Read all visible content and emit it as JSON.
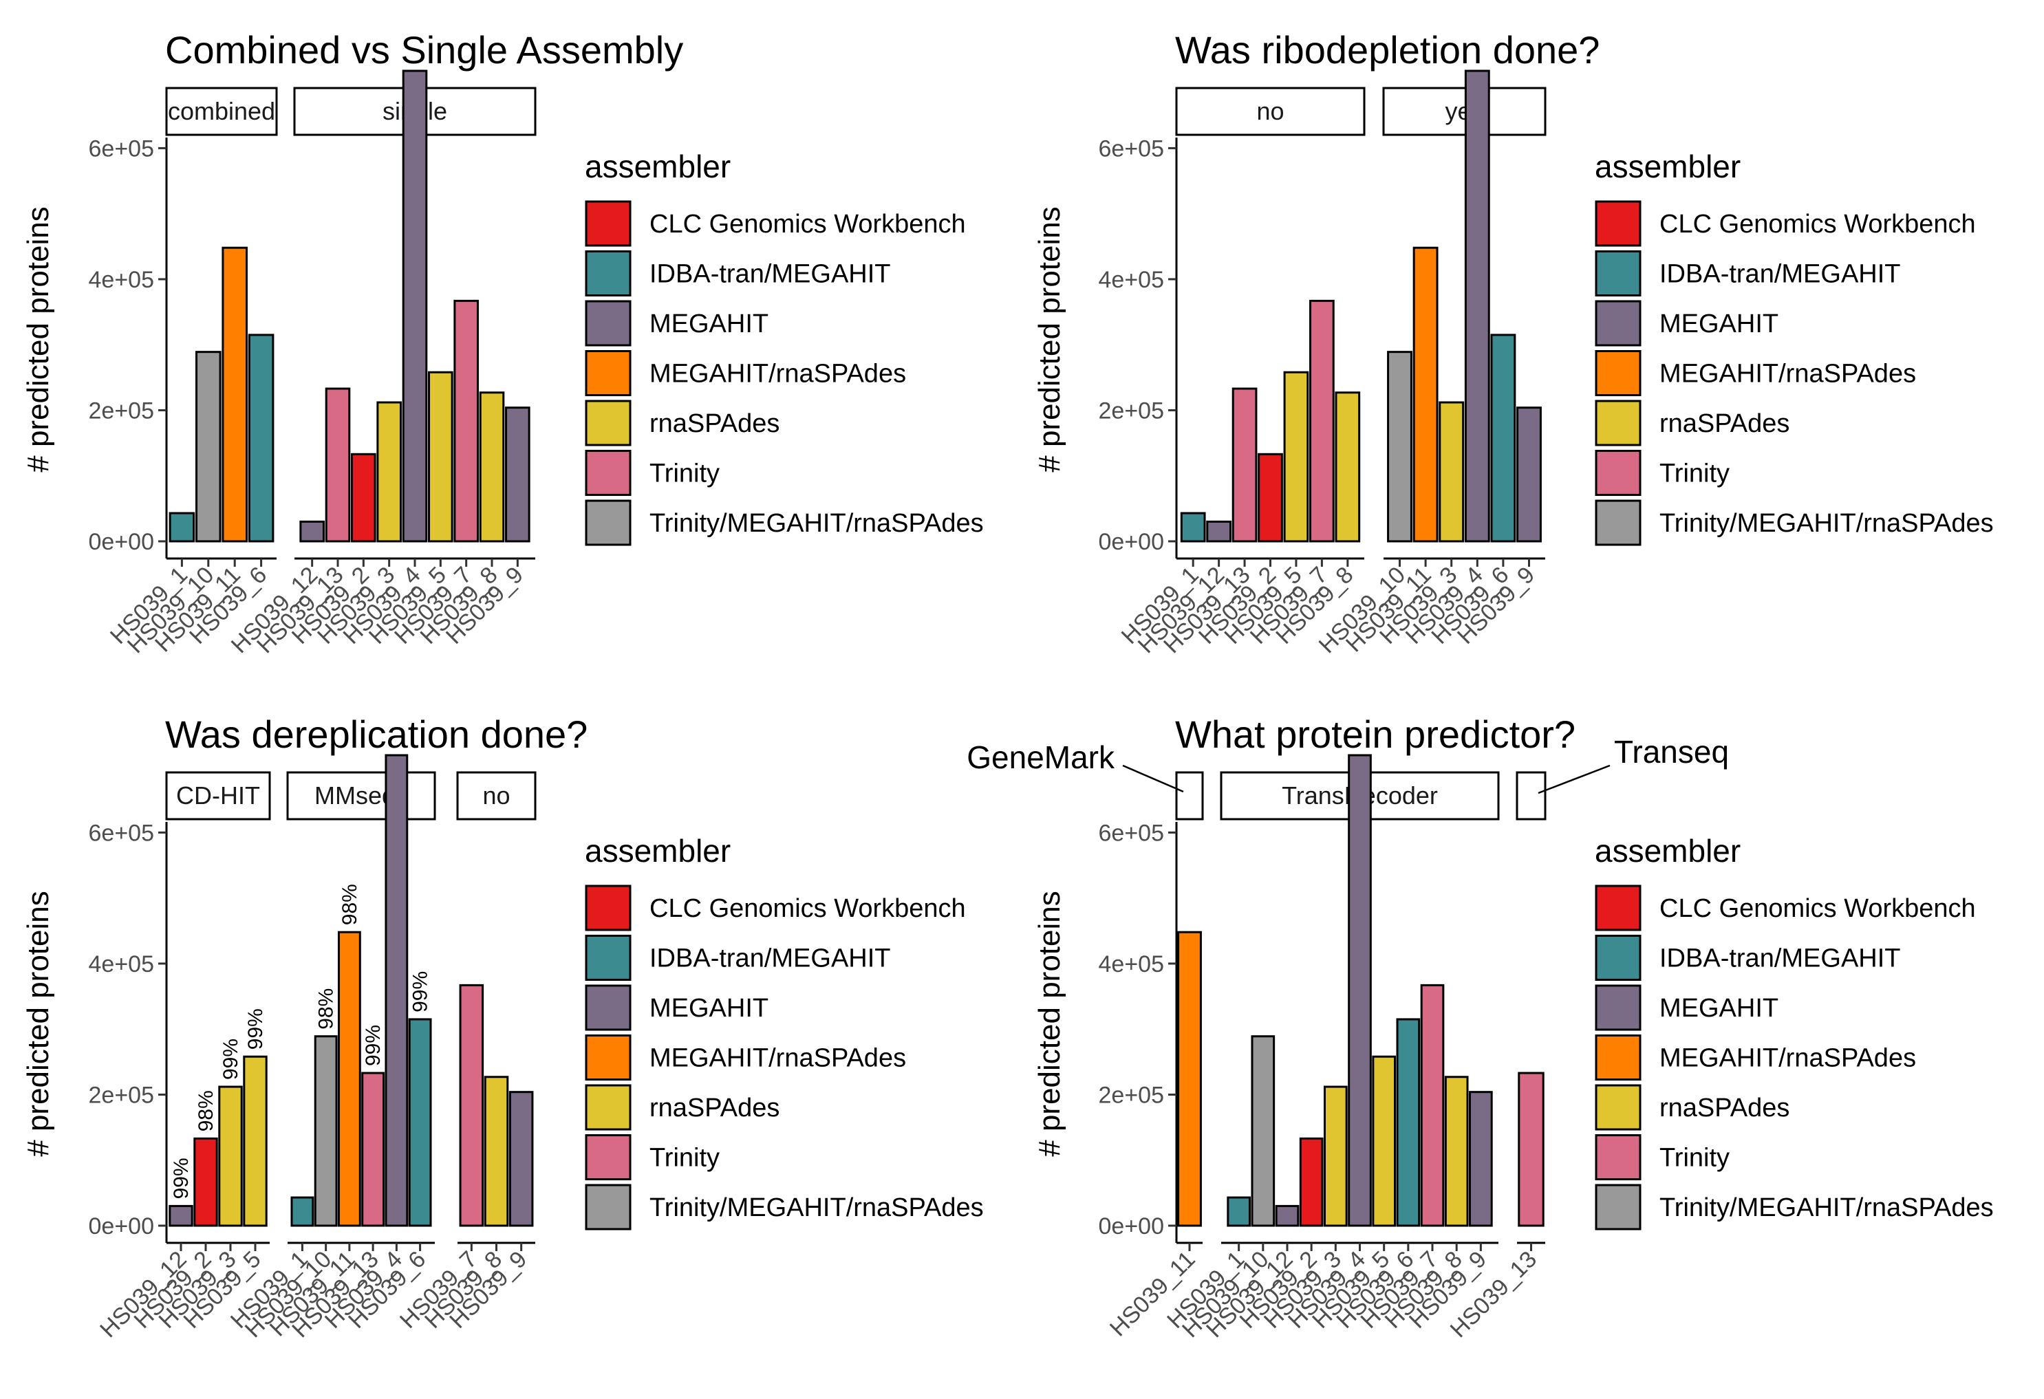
{
  "colors": {
    "CLC Genomics Workbench": "#E41A1C",
    "IDBA-tran/MEGAHIT": "#3B8B90",
    "MEGAHIT": "#7A6C87",
    "MEGAHIT/rnaSPAdes": "#FF7F00",
    "rnaSPAdes": "#E0C531",
    "Trinity": "#D86A85",
    "Trinity/MEGAHIT/rnaSPAdes": "#999999"
  },
  "legend": {
    "title": "assembler",
    "items": [
      "CLC Genomics Workbench",
      "IDBA-tran/MEGAHIT",
      "MEGAHIT",
      "MEGAHIT/rnaSPAdes",
      "rnaSPAdes",
      "Trinity",
      "Trinity/MEGAHIT/rnaSPAdes"
    ]
  },
  "ylabel": "# predicted proteins",
  "yticks": [
    0,
    200000,
    400000,
    600000
  ],
  "ytick_labels": [
    "0e+00",
    "2e+05",
    "4e+05",
    "6e+05"
  ],
  "ylim": [
    0,
    750000
  ],
  "chart_data": [
    {
      "type": "bar",
      "title": "Combined vs Single Assembly",
      "ylabel": "# predicted proteins",
      "facets": [
        {
          "label": "combined",
          "bars": [
            {
              "x": "HS039_1",
              "value": 43000,
              "assembler": "IDBA-tran/MEGAHIT"
            },
            {
              "x": "HS039_10",
              "value": 289000,
              "assembler": "Trinity/MEGAHIT/rnaSPAdes"
            },
            {
              "x": "HS039_11",
              "value": 448000,
              "assembler": "MEGAHIT/rnaSPAdes"
            },
            {
              "x": "HS039_6",
              "value": 315000,
              "assembler": "IDBA-tran/MEGAHIT"
            }
          ]
        },
        {
          "label": "single",
          "bars": [
            {
              "x": "HS039_12",
              "value": 30000,
              "assembler": "MEGAHIT"
            },
            {
              "x": "HS039_13",
              "value": 233000,
              "assembler": "Trinity"
            },
            {
              "x": "HS039_2",
              "value": 133000,
              "assembler": "CLC Genomics Workbench"
            },
            {
              "x": "HS039_3",
              "value": 212000,
              "assembler": "rnaSPAdes"
            },
            {
              "x": "HS039_4",
              "value": 718000,
              "assembler": "MEGAHIT"
            },
            {
              "x": "HS039_5",
              "value": 258000,
              "assembler": "rnaSPAdes"
            },
            {
              "x": "HS039_7",
              "value": 367000,
              "assembler": "Trinity"
            },
            {
              "x": "HS039_8",
              "value": 227000,
              "assembler": "rnaSPAdes"
            },
            {
              "x": "HS039_9",
              "value": 204000,
              "assembler": "MEGAHIT"
            }
          ]
        }
      ]
    },
    {
      "type": "bar",
      "title": "Was ribodepletion done?",
      "ylabel": "# predicted proteins",
      "facets": [
        {
          "label": "no",
          "bars": [
            {
              "x": "HS039_1",
              "value": 43000,
              "assembler": "IDBA-tran/MEGAHIT"
            },
            {
              "x": "HS039_12",
              "value": 30000,
              "assembler": "MEGAHIT"
            },
            {
              "x": "HS039_13",
              "value": 233000,
              "assembler": "Trinity"
            },
            {
              "x": "HS039_2",
              "value": 133000,
              "assembler": "CLC Genomics Workbench"
            },
            {
              "x": "HS039_5",
              "value": 258000,
              "assembler": "rnaSPAdes"
            },
            {
              "x": "HS039_7",
              "value": 367000,
              "assembler": "Trinity"
            },
            {
              "x": "HS039_8",
              "value": 227000,
              "assembler": "rnaSPAdes"
            }
          ]
        },
        {
          "label": "yes",
          "bars": [
            {
              "x": "HS039_10",
              "value": 289000,
              "assembler": "Trinity/MEGAHIT/rnaSPAdes"
            },
            {
              "x": "HS039_11",
              "value": 448000,
              "assembler": "MEGAHIT/rnaSPAdes"
            },
            {
              "x": "HS039_3",
              "value": 212000,
              "assembler": "rnaSPAdes"
            },
            {
              "x": "HS039_4",
              "value": 718000,
              "assembler": "MEGAHIT"
            },
            {
              "x": "HS039_6",
              "value": 315000,
              "assembler": "IDBA-tran/MEGAHIT"
            },
            {
              "x": "HS039_9",
              "value": 204000,
              "assembler": "MEGAHIT"
            }
          ]
        }
      ]
    },
    {
      "type": "bar",
      "title": "Was dereplication done?",
      "ylabel": "# predicted proteins",
      "facets": [
        {
          "label": "CD-HIT",
          "bars": [
            {
              "x": "HS039_12",
              "value": 30000,
              "assembler": "MEGAHIT",
              "label": "99%"
            },
            {
              "x": "HS039_2",
              "value": 133000,
              "assembler": "CLC Genomics Workbench",
              "label": "98%"
            },
            {
              "x": "HS039_3",
              "value": 212000,
              "assembler": "rnaSPAdes",
              "label": "99%"
            },
            {
              "x": "HS039_5",
              "value": 258000,
              "assembler": "rnaSPAdes",
              "label": "99%"
            }
          ]
        },
        {
          "label": "MMseqs",
          "bars": [
            {
              "x": "HS039_1",
              "value": 43000,
              "assembler": "IDBA-tran/MEGAHIT"
            },
            {
              "x": "HS039_10",
              "value": 289000,
              "assembler": "Trinity/MEGAHIT/rnaSPAdes",
              "label": "98%"
            },
            {
              "x": "HS039_11",
              "value": 448000,
              "assembler": "MEGAHIT/rnaSPAdes",
              "label": "98%"
            },
            {
              "x": "HS039_13",
              "value": 233000,
              "assembler": "Trinity",
              "label": "99%"
            },
            {
              "x": "HS039_4",
              "value": 718000,
              "assembler": "MEGAHIT"
            },
            {
              "x": "HS039_6",
              "value": 315000,
              "assembler": "IDBA-tran/MEGAHIT",
              "label": "99%"
            }
          ]
        },
        {
          "label": "no",
          "bars": [
            {
              "x": "HS039_7",
              "value": 367000,
              "assembler": "Trinity"
            },
            {
              "x": "HS039_8",
              "value": 227000,
              "assembler": "rnaSPAdes"
            },
            {
              "x": "HS039_9",
              "value": 204000,
              "assembler": "MEGAHIT"
            }
          ]
        }
      ]
    },
    {
      "type": "bar",
      "title": "What protein predictor?",
      "ylabel": "# predicted proteins",
      "facets": [
        {
          "label": "",
          "callout": "GeneMark",
          "bars": [
            {
              "x": "HS039_11",
              "value": 448000,
              "assembler": "MEGAHIT/rnaSPAdes"
            }
          ]
        },
        {
          "label": "TransDecoder",
          "bars": [
            {
              "x": "HS039_1",
              "value": 43000,
              "assembler": "IDBA-tran/MEGAHIT"
            },
            {
              "x": "HS039_10",
              "value": 289000,
              "assembler": "Trinity/MEGAHIT/rnaSPAdes"
            },
            {
              "x": "HS039_12",
              "value": 30000,
              "assembler": "MEGAHIT"
            },
            {
              "x": "HS039_2",
              "value": 133000,
              "assembler": "CLC Genomics Workbench"
            },
            {
              "x": "HS039_3",
              "value": 212000,
              "assembler": "rnaSPAdes"
            },
            {
              "x": "HS039_4",
              "value": 718000,
              "assembler": "MEGAHIT"
            },
            {
              "x": "HS039_5",
              "value": 258000,
              "assembler": "rnaSPAdes"
            },
            {
              "x": "HS039_6",
              "value": 315000,
              "assembler": "IDBA-tran/MEGAHIT"
            },
            {
              "x": "HS039_7",
              "value": 367000,
              "assembler": "Trinity"
            },
            {
              "x": "HS039_8",
              "value": 227000,
              "assembler": "rnaSPAdes"
            },
            {
              "x": "HS039_9",
              "value": 204000,
              "assembler": "MEGAHIT"
            }
          ]
        },
        {
          "label": "",
          "callout": "Transeq",
          "bars": [
            {
              "x": "HS039_13",
              "value": 233000,
              "assembler": "Trinity"
            }
          ]
        }
      ]
    }
  ]
}
